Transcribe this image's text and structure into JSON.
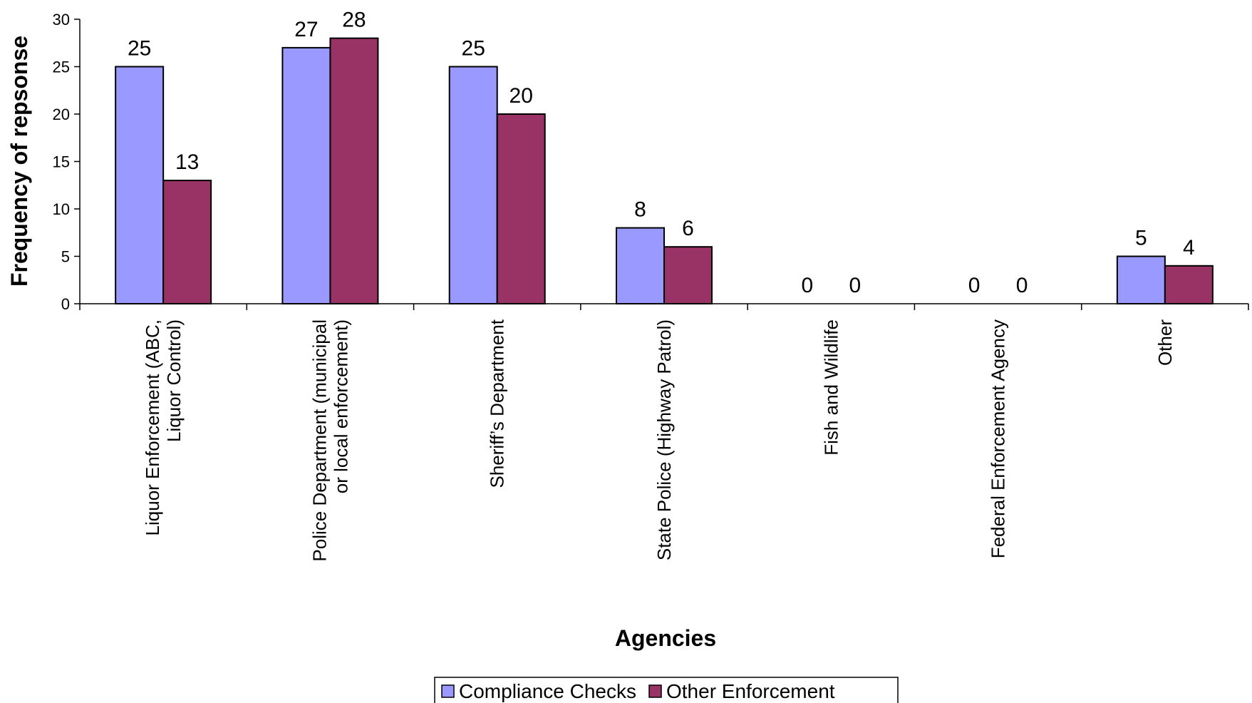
{
  "chart_data": {
    "type": "bar",
    "categories": [
      [
        "Liquor Enforcement (ABC,",
        "Liquor Control)"
      ],
      [
        "Police Department (municipal",
        "or local enforcement)"
      ],
      [
        "Sheriff’s Department"
      ],
      [
        "State Police (Highway Patrol)"
      ],
      [
        "Fish and Wildlife"
      ],
      [
        "Federal Enforcement Agency"
      ],
      [
        "Other"
      ]
    ],
    "series": [
      {
        "name": "Compliance Checks",
        "values": [
          25,
          27,
          25,
          8,
          0,
          0,
          5
        ],
        "color": "#9999ff"
      },
      {
        "name": "Other Enforcement",
        "values": [
          13,
          28,
          20,
          6,
          0,
          0,
          4
        ],
        "color": "#993366"
      }
    ],
    "title": "",
    "xlabel": "Agencies",
    "ylabel": "Frequency of repsonse",
    "ylim": [
      0,
      30
    ],
    "yticks": [
      0,
      5,
      10,
      15,
      20,
      25,
      30
    ],
    "grid": false,
    "legend_position": "bottom"
  }
}
